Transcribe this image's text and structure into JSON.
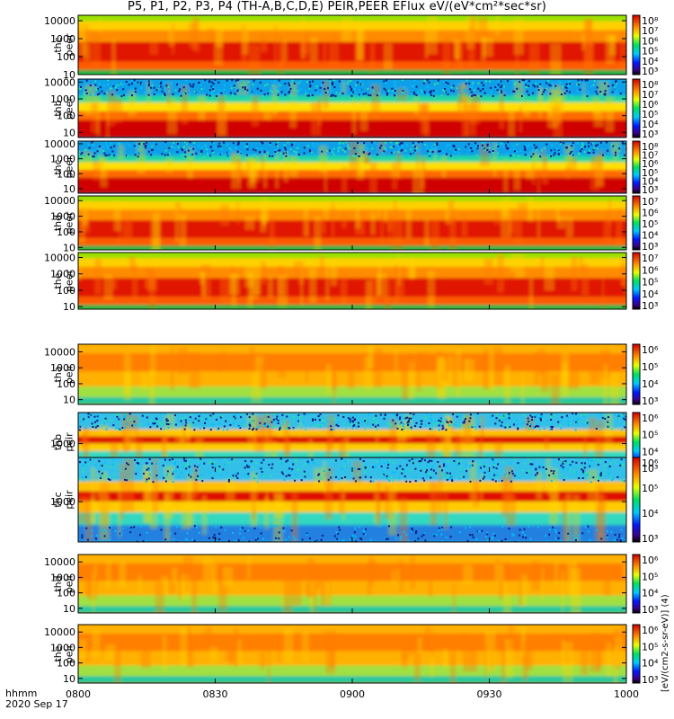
{
  "title": "P5, P1, P2, P3, P4 (TH-A,B,C,D,E) PEIR,PEER EFlux eV/(eV*cm²*sec*sr)",
  "footer": {
    "time_label": "hhmm",
    "date_label": "2020 Sep 17"
  },
  "colorbar_unit": "[eV/(cm2-s-sr-eV)] (4)",
  "colors": {
    "high": "#d40000",
    "mid": "#ff9a00",
    "low": "#00c8e0",
    "floor": "#102080"
  },
  "chart_data": {
    "type": "heatmap",
    "x": {
      "label": "hhmm",
      "range": [
        "0800",
        "1000"
      ],
      "ticks": [
        "0800",
        "0830",
        "0900",
        "0930",
        "1000"
      ]
    },
    "colorbar": {
      "scale": "log",
      "ticks": [
        "10³",
        "10⁴",
        "10⁵",
        "10⁶",
        "10⁷",
        "10⁸"
      ]
    },
    "panels": [
      {
        "label": "thc\npeer",
        "probe": "THC",
        "species": "electron",
        "ylim": [
          10,
          20000
        ],
        "yscale": "log",
        "yticks": [
          "10",
          "100",
          "1000",
          "10000"
        ],
        "colorbar_ticks": [
          "10³",
          "10⁴",
          "10⁵",
          "10⁶",
          "10⁷",
          "10⁸"
        ]
      },
      {
        "label": "thb\npeer",
        "probe": "THB",
        "species": "electron",
        "ylim": [
          5,
          15000
        ],
        "yscale": "log",
        "yticks": [
          "10",
          "100",
          "1000",
          "10000"
        ],
        "colorbar_ticks": [
          "10³",
          "10⁴",
          "10⁵",
          "10⁶",
          "10⁷",
          "10⁸"
        ]
      },
      {
        "label": "thc\npeer",
        "probe": "THC",
        "species": "electron",
        "ylim": [
          5,
          15000
        ],
        "yscale": "log",
        "yticks": [
          "10",
          "100",
          "1000",
          "10000"
        ],
        "colorbar_ticks": [
          "10³",
          "10⁴",
          "10⁵",
          "10⁶",
          "10⁷",
          "10⁸"
        ]
      },
      {
        "label": "thd\npeer",
        "probe": "THD",
        "species": "electron",
        "ylim": [
          7,
          20000
        ],
        "yscale": "log",
        "yticks": [
          "10",
          "100",
          "1000",
          "10000"
        ],
        "colorbar_ticks": [
          "10³",
          "10⁴",
          "10⁵",
          "10⁶",
          "10⁷"
        ]
      },
      {
        "label": "the\npeer",
        "probe": "THE",
        "species": "electron",
        "ylim": [
          7,
          20000
        ],
        "yscale": "log",
        "yticks": [
          "10",
          "100",
          "1000",
          "10000"
        ],
        "colorbar_ticks": [
          "10³",
          "10⁴",
          "10⁵",
          "10⁶",
          "10⁷"
        ]
      },
      {
        "label": "tha\npeir",
        "probe": "THA",
        "species": "ion",
        "ylim": [
          5,
          30000
        ],
        "yscale": "log",
        "yticks": [
          "10",
          "100",
          "1000",
          "10000"
        ],
        "colorbar_ticks": [
          "10³",
          "10⁴",
          "10⁵",
          "10⁶"
        ]
      },
      {
        "label": "thb\npeir",
        "probe": "THB",
        "species": "ion",
        "ylim": [
          150,
          8000
        ],
        "yscale": "log",
        "yticks": [
          "1000"
        ],
        "colorbar_ticks": [
          "10³",
          "10⁴",
          "10⁵",
          "10⁶"
        ]
      },
      {
        "label": "thc\npeir",
        "probe": "THC",
        "species": "ion",
        "ylim": [
          150,
          8000
        ],
        "yscale": "log",
        "yticks": [
          "1000"
        ],
        "colorbar_ticks": [
          "10³",
          "10⁴",
          "10⁵",
          "10⁶"
        ]
      },
      {
        "label": "thd\npeir",
        "probe": "THD",
        "species": "ion",
        "ylim": [
          5,
          30000
        ],
        "yscale": "log",
        "yticks": [
          "10",
          "100",
          "1000",
          "10000"
        ],
        "colorbar_ticks": [
          "10³",
          "10⁴",
          "10⁵",
          "10⁶"
        ]
      },
      {
        "label": "the\npeir",
        "probe": "THE",
        "species": "ion",
        "ylim": [
          5,
          30000
        ],
        "yscale": "log",
        "yticks": [
          "10",
          "100",
          "1000",
          "10000"
        ],
        "colorbar_ticks": [
          "10³",
          "10⁴",
          "10⁵",
          "10⁶"
        ]
      }
    ]
  }
}
